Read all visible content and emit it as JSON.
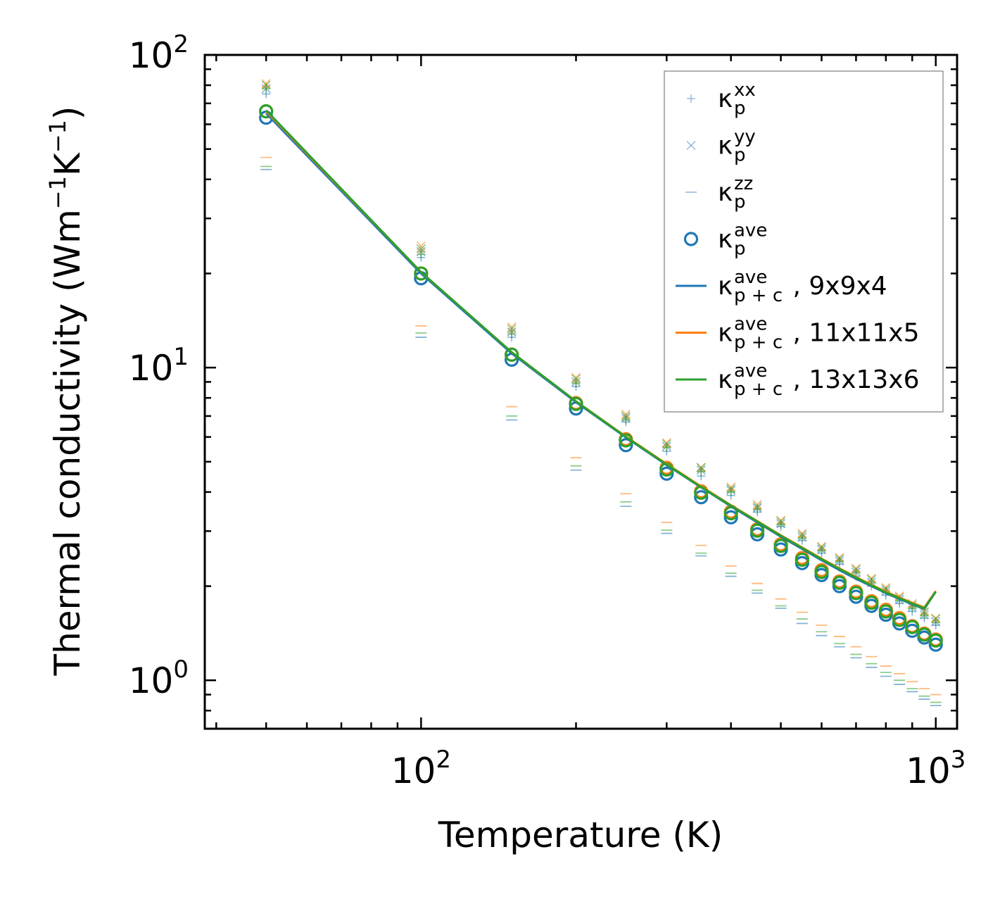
{
  "chart_data": {
    "type": "scatter",
    "xscale": "log",
    "yscale": "log",
    "xlim": [
      38,
      1100
    ],
    "ylim": [
      0.7,
      100
    ],
    "xlabel": "Temperature (K)",
    "ylabel": {
      "main": "Thermal conductivity (Wm",
      "sup1": "−1",
      "mid": "K",
      "sup2": "−1",
      "end": ")"
    },
    "x_ticks": [
      {
        "base": "10",
        "exp": "2",
        "value": 100
      },
      {
        "base": "10",
        "exp": "3",
        "value": 1000
      }
    ],
    "y_ticks": [
      {
        "base": "10",
        "exp": "0",
        "value": 1
      },
      {
        "base": "10",
        "exp": "1",
        "value": 10
      },
      {
        "base": "10",
        "exp": "2",
        "value": 100
      }
    ],
    "legend_position": "top-right",
    "legend": [
      {
        "symbol": "+",
        "main": "κ",
        "sup": "xx",
        "sub": "p",
        "rest": "",
        "kind": "marker-plus",
        "color": "#5a8fc0"
      },
      {
        "symbol": "×",
        "main": "κ",
        "sup": "yy",
        "sub": "p",
        "rest": "",
        "kind": "marker-x",
        "color": "#5a8fc0"
      },
      {
        "symbol": "–",
        "main": "κ",
        "sup": "zz",
        "sub": "p",
        "rest": "",
        "kind": "marker-dash",
        "color": "#5a8fc0"
      },
      {
        "symbol": "o",
        "main": "κ",
        "sup": "ave",
        "sub": "p",
        "rest": "",
        "kind": "marker-circle",
        "color": "#1f77b4"
      },
      {
        "symbol": "line",
        "main": "κ",
        "sup": "ave",
        "sub": "p + c",
        "rest": ", 9x9x4",
        "kind": "line",
        "color": "#1f77b4"
      },
      {
        "symbol": "line",
        "main": "κ",
        "sup": "ave",
        "sub": "p + c",
        "rest": ", 11x11x5",
        "kind": "line",
        "color": "#ff7f0e"
      },
      {
        "symbol": "line",
        "main": "κ",
        "sup": "ave",
        "sub": "p + c",
        "rest": ", 13x13x6",
        "kind": "line",
        "color": "#2ca02c"
      }
    ],
    "temperatures": [
      50,
      100,
      150,
      200,
      250,
      300,
      350,
      400,
      450,
      500,
      550,
      600,
      650,
      700,
      750,
      800,
      850,
      900,
      950,
      1000
    ],
    "series": [
      {
        "name": "9x9x4",
        "color": "#1f77b4",
        "kxx": [
          75,
          22.5,
          12.5,
          8.7,
          6.7,
          5.4,
          4.5,
          3.9,
          3.45,
          3.1,
          2.8,
          2.55,
          2.35,
          2.15,
          2.0,
          1.87,
          1.76,
          1.66,
          1.58,
          1.5
        ],
        "kyy": [
          78,
          23.5,
          13.0,
          9.0,
          6.9,
          5.6,
          4.7,
          4.05,
          3.55,
          3.17,
          2.87,
          2.62,
          2.41,
          2.22,
          2.06,
          1.93,
          1.81,
          1.71,
          1.62,
          1.54
        ],
        "kzz": [
          43,
          12.5,
          6.8,
          4.7,
          3.6,
          2.95,
          2.5,
          2.15,
          1.9,
          1.7,
          1.52,
          1.39,
          1.28,
          1.18,
          1.1,
          1.03,
          0.97,
          0.92,
          0.87,
          0.83
        ],
        "kave": [
          63,
          19.3,
          10.6,
          7.4,
          5.65,
          4.58,
          3.85,
          3.32,
          2.93,
          2.62,
          2.37,
          2.17,
          2.0,
          1.85,
          1.73,
          1.62,
          1.52,
          1.44,
          1.37,
          1.3
        ],
        "kpc": [
          65,
          20.0,
          11.1,
          7.75,
          5.98,
          4.88,
          4.14,
          3.6,
          3.2,
          2.88,
          2.63,
          2.42,
          2.25,
          2.11,
          2.0,
          1.9,
          1.82,
          1.75,
          1.69,
          1.92
        ]
      },
      {
        "name": "11x11x5",
        "color": "#ff7f0e",
        "kxx": [
          79,
          23.5,
          13.0,
          9.0,
          6.9,
          5.6,
          4.7,
          4.05,
          3.55,
          3.18,
          2.88,
          2.62,
          2.42,
          2.23,
          2.07,
          1.94,
          1.82,
          1.72,
          1.63,
          1.55
        ],
        "kyy": [
          81,
          24.5,
          13.5,
          9.3,
          7.1,
          5.75,
          4.8,
          4.15,
          3.65,
          3.25,
          2.95,
          2.68,
          2.47,
          2.28,
          2.12,
          1.98,
          1.86,
          1.76,
          1.66,
          1.58
        ],
        "kzz": [
          47,
          13.6,
          7.5,
          5.15,
          3.95,
          3.2,
          2.7,
          2.32,
          2.04,
          1.82,
          1.65,
          1.5,
          1.38,
          1.28,
          1.19,
          1.11,
          1.05,
          0.99,
          0.94,
          0.9
        ],
        "kave": [
          66,
          20.0,
          11.0,
          7.7,
          5.9,
          4.78,
          4.02,
          3.46,
          3.04,
          2.72,
          2.46,
          2.25,
          2.07,
          1.92,
          1.79,
          1.68,
          1.58,
          1.49,
          1.41,
          1.35
        ],
        "kpc": [
          66,
          20.2,
          11.2,
          7.8,
          6.02,
          4.92,
          4.17,
          3.63,
          3.23,
          2.91,
          2.66,
          2.45,
          2.28,
          2.14,
          2.02,
          1.92,
          1.84,
          1.77,
          1.71,
          1.93
        ]
      },
      {
        "name": "13x13x6",
        "color": "#2ca02c",
        "kxx": [
          78,
          23.0,
          12.8,
          8.9,
          6.8,
          5.55,
          4.65,
          4.0,
          3.52,
          3.15,
          2.85,
          2.6,
          2.4,
          2.21,
          2.05,
          1.92,
          1.8,
          1.7,
          1.61,
          1.53
        ],
        "kyy": [
          80,
          24.0,
          13.3,
          9.2,
          7.0,
          5.7,
          4.78,
          4.1,
          3.6,
          3.22,
          2.92,
          2.66,
          2.45,
          2.26,
          2.1,
          1.96,
          1.84,
          1.74,
          1.65,
          1.57
        ],
        "kzz": [
          44,
          12.9,
          7.0,
          4.85,
          3.72,
          3.02,
          2.55,
          2.2,
          1.94,
          1.73,
          1.57,
          1.43,
          1.31,
          1.21,
          1.13,
          1.06,
          1.0,
          0.94,
          0.89,
          0.85
        ],
        "kave": [
          66,
          20.0,
          11.0,
          7.65,
          5.85,
          4.72,
          3.98,
          3.42,
          3.01,
          2.69,
          2.43,
          2.22,
          2.05,
          1.9,
          1.77,
          1.66,
          1.56,
          1.48,
          1.4,
          1.34
        ],
        "kpc": [
          66.5,
          20.2,
          11.2,
          7.8,
          6.0,
          4.9,
          4.15,
          3.62,
          3.22,
          2.9,
          2.65,
          2.44,
          2.27,
          2.13,
          2.01,
          1.91,
          1.83,
          1.76,
          1.7,
          1.92
        ]
      }
    ]
  }
}
